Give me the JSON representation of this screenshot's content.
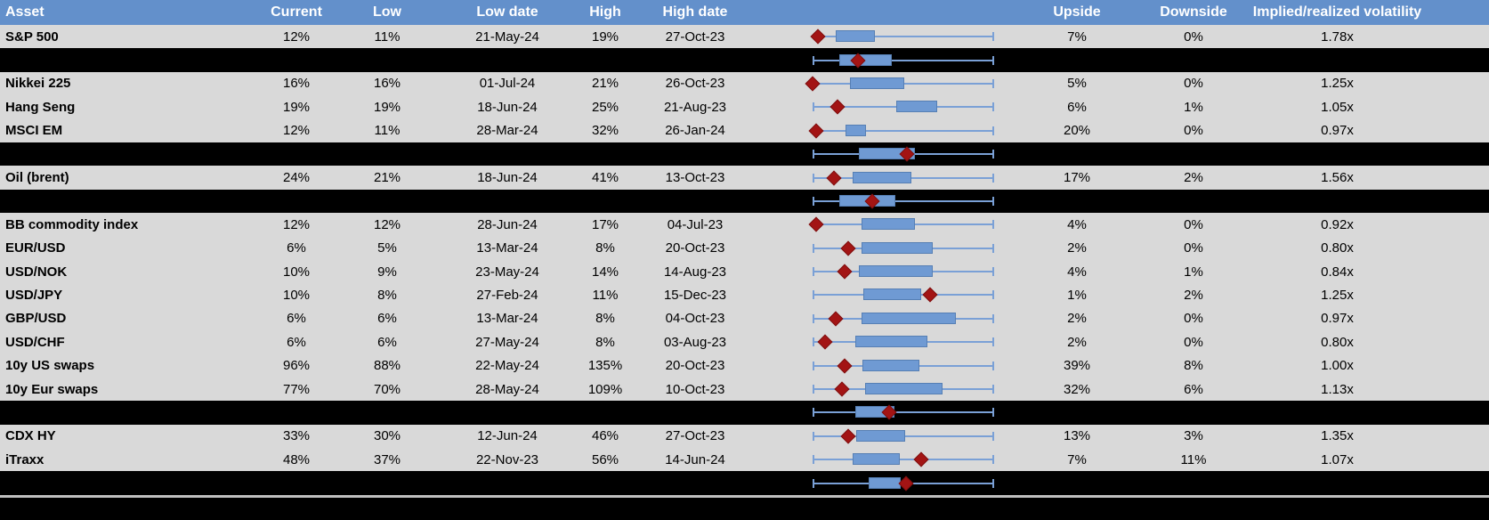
{
  "colors": {
    "header_bg": "#6390cb",
    "header_text": "#ffffff",
    "row_bg": "#d9d9d9",
    "separator_bg": "#000000",
    "box_fill": "#6f9ad3",
    "box_border": "#567fb4",
    "whisker": "#7aa0d6",
    "diamond": "#a31414",
    "footer_divider": "#bfbfbf"
  },
  "chart_data": {
    "type": "table",
    "description": "Implied volatility table with 52-week range box plots; red diamond = current level, blue box = interquartile range, whiskers = low/high range",
    "columns": [
      "Asset",
      "Current",
      "Low",
      "Low date",
      "High",
      "High date",
      "",
      "Upside",
      "Downside",
      "Implied/realized volatility"
    ],
    "box_note": "box/diamond values are fractions (0-1) of the horizontal range track",
    "rows": [
      {
        "type": "data",
        "asset": "S&P 500",
        "current": "12%",
        "low": "11%",
        "low_date": "21-May-24",
        "high": "19%",
        "high_date": "27-Oct-23",
        "upside": "7%",
        "downside": "0%",
        "implied_realized": "1.78x",
        "box": {
          "b1": 0.127,
          "b2": 0.343,
          "d": 0.029,
          "left_tick": false
        }
      },
      {
        "type": "sep",
        "box": {
          "b1": 0.147,
          "b2": 0.436,
          "d": 0.25,
          "left_tick": true
        }
      },
      {
        "type": "data",
        "asset": "Nikkei 225",
        "current": "16%",
        "low": "16%",
        "low_date": "01-Jul-24",
        "high": "21%",
        "high_date": "26-Oct-23",
        "upside": "5%",
        "downside": "0%",
        "implied_realized": "1.25x",
        "box": {
          "b1": 0.206,
          "b2": 0.505,
          "d": 0.0,
          "left_tick": false
        }
      },
      {
        "type": "data",
        "asset": "Hang Seng",
        "current": "19%",
        "low": "19%",
        "low_date": "18-Jun-24",
        "high": "25%",
        "high_date": "21-Aug-23",
        "upside": "6%",
        "downside": "1%",
        "implied_realized": "1.05x",
        "box": {
          "b1": 0.461,
          "b2": 0.686,
          "d": 0.137,
          "left_tick": true
        }
      },
      {
        "type": "data",
        "asset": "MSCI EM",
        "current": "12%",
        "low": "11%",
        "low_date": "28-Mar-24",
        "high": "32%",
        "high_date": "26-Jan-24",
        "upside": "20%",
        "downside": "0%",
        "implied_realized": "0.97x",
        "box": {
          "b1": 0.181,
          "b2": 0.294,
          "d": 0.02,
          "left_tick": false
        }
      },
      {
        "type": "sep",
        "box": {
          "b1": 0.255,
          "b2": 0.564,
          "d": 0.52,
          "left_tick": true
        }
      },
      {
        "type": "data",
        "asset": "Oil (brent)",
        "current": "24%",
        "low": "21%",
        "low_date": "18-Jun-24",
        "high": "41%",
        "high_date": "13-Oct-23",
        "upside": "17%",
        "downside": "2%",
        "implied_realized": "1.56x",
        "box": {
          "b1": 0.221,
          "b2": 0.544,
          "d": 0.118,
          "left_tick": true
        }
      },
      {
        "type": "sep",
        "box": {
          "b1": 0.147,
          "b2": 0.456,
          "d": 0.328,
          "left_tick": true
        }
      },
      {
        "type": "data",
        "asset": "BB commodity index",
        "current": "12%",
        "low": "12%",
        "low_date": "28-Jun-24",
        "high": "17%",
        "high_date": "04-Jul-23",
        "upside": "4%",
        "downside": "0%",
        "implied_realized": "0.92x",
        "box": {
          "b1": 0.27,
          "b2": 0.564,
          "d": 0.02,
          "left_tick": false
        }
      },
      {
        "type": "data",
        "asset": "EUR/USD",
        "current": "6%",
        "low": "5%",
        "low_date": "13-Mar-24",
        "high": "8%",
        "high_date": "20-Oct-23",
        "upside": "2%",
        "downside": "0%",
        "implied_realized": "0.80x",
        "box": {
          "b1": 0.27,
          "b2": 0.662,
          "d": 0.196,
          "left_tick": true
        }
      },
      {
        "type": "data",
        "asset": "USD/NOK",
        "current": "10%",
        "low": "9%",
        "low_date": "23-May-24",
        "high": "14%",
        "high_date": "14-Aug-23",
        "upside": "4%",
        "downside": "1%",
        "implied_realized": "0.84x",
        "box": {
          "b1": 0.255,
          "b2": 0.662,
          "d": 0.176,
          "left_tick": true
        }
      },
      {
        "type": "data",
        "asset": "USD/JPY",
        "current": "10%",
        "low": "8%",
        "low_date": "27-Feb-24",
        "high": "11%",
        "high_date": "15-Dec-23",
        "upside": "1%",
        "downside": "2%",
        "implied_realized": "1.25x",
        "box": {
          "b1": 0.279,
          "b2": 0.598,
          "d": 0.647,
          "left_tick": true
        }
      },
      {
        "type": "data",
        "asset": "GBP/USD",
        "current": "6%",
        "low": "6%",
        "low_date": "13-Mar-24",
        "high": "8%",
        "high_date": "04-Oct-23",
        "upside": "2%",
        "downside": "0%",
        "implied_realized": "0.97x",
        "box": {
          "b1": 0.27,
          "b2": 0.789,
          "d": 0.127,
          "left_tick": true
        }
      },
      {
        "type": "data",
        "asset": "USD/CHF",
        "current": "6%",
        "low": "6%",
        "low_date": "27-May-24",
        "high": "8%",
        "high_date": "03-Aug-23",
        "upside": "2%",
        "downside": "0%",
        "implied_realized": "0.80x",
        "box": {
          "b1": 0.235,
          "b2": 0.632,
          "d": 0.069,
          "left_tick": true
        }
      },
      {
        "type": "data",
        "asset": "10y US swaps",
        "current": "96%",
        "low": "88%",
        "low_date": "22-May-24",
        "high": "135%",
        "high_date": "20-Oct-23",
        "upside": "39%",
        "downside": "8%",
        "implied_realized": "1.00x",
        "box": {
          "b1": 0.275,
          "b2": 0.588,
          "d": 0.176,
          "left_tick": true
        }
      },
      {
        "type": "data",
        "asset": "10y Eur swaps",
        "current": "77%",
        "low": "70%",
        "low_date": "28-May-24",
        "high": "109%",
        "high_date": "10-Oct-23",
        "upside": "32%",
        "downside": "6%",
        "implied_realized": "1.13x",
        "box": {
          "b1": 0.289,
          "b2": 0.716,
          "d": 0.162,
          "left_tick": true
        }
      },
      {
        "type": "sep",
        "box": {
          "b1": 0.235,
          "b2": 0.451,
          "d": 0.422,
          "left_tick": true
        }
      },
      {
        "type": "data",
        "asset": "CDX HY",
        "current": "33%",
        "low": "30%",
        "low_date": "12-Jun-24",
        "high": "46%",
        "high_date": "27-Oct-23",
        "upside": "13%",
        "downside": "3%",
        "implied_realized": "1.35x",
        "box": {
          "b1": 0.24,
          "b2": 0.51,
          "d": 0.196,
          "left_tick": true
        }
      },
      {
        "type": "data",
        "asset": "iTraxx",
        "current": "48%",
        "low": "37%",
        "low_date": "22-Nov-23",
        "high": "56%",
        "high_date": "14-Jun-24",
        "upside": "7%",
        "downside": "11%",
        "implied_realized": "1.07x",
        "box": {
          "b1": 0.221,
          "b2": 0.48,
          "d": 0.598,
          "left_tick": true
        }
      },
      {
        "type": "sep",
        "box": {
          "b1": 0.309,
          "b2": 0.485,
          "d": 0.515,
          "left_tick": true
        }
      }
    ]
  }
}
